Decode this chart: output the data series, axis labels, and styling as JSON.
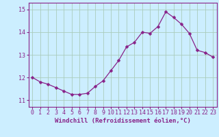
{
  "x": [
    0,
    1,
    2,
    3,
    4,
    5,
    6,
    7,
    8,
    9,
    10,
    11,
    12,
    13,
    14,
    15,
    16,
    17,
    18,
    19,
    20,
    21,
    22,
    23
  ],
  "y": [
    12.0,
    11.8,
    11.7,
    11.55,
    11.4,
    11.25,
    11.25,
    11.3,
    11.6,
    11.85,
    12.3,
    12.75,
    13.35,
    13.55,
    14.0,
    13.95,
    14.25,
    14.9,
    14.65,
    14.35,
    13.95,
    13.2,
    13.1,
    12.9
  ],
  "line_color": "#882288",
  "marker": "D",
  "markersize": 2.5,
  "linewidth": 0.9,
  "bg_color": "#cceeff",
  "grid_color": "#aaccbb",
  "axis_color": "#882288",
  "spine_color": "#882288",
  "xlabel": "Windchill (Refroidissement éolien,°C)",
  "xlabel_fontsize": 6.5,
  "tick_fontsize": 6,
  "ylim": [
    10.7,
    15.3
  ],
  "yticks": [
    11,
    12,
    13,
    14,
    15
  ],
  "ytick_labels": [
    "11",
    "12",
    "13",
    "14",
    "15"
  ],
  "xlim": [
    -0.5,
    23.5
  ],
  "xticks": [
    0,
    1,
    2,
    3,
    4,
    5,
    6,
    7,
    8,
    9,
    10,
    11,
    12,
    13,
    14,
    15,
    16,
    17,
    18,
    19,
    20,
    21,
    22,
    23
  ],
  "xtick_labels": [
    "0",
    "1",
    "2",
    "3",
    "4",
    "5",
    "6",
    "7",
    "8",
    "9",
    "10",
    "11",
    "12",
    "13",
    "14",
    "15",
    "16",
    "17",
    "18",
    "19",
    "20",
    "21",
    "22",
    "23"
  ]
}
